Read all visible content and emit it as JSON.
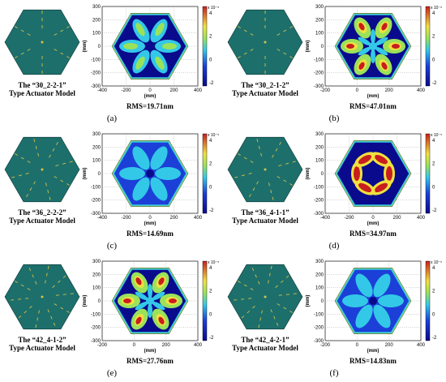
{
  "figure": {
    "panels": [
      {
        "letter": "(a)",
        "model_line1": "The “30_2-2-1”",
        "model_line2": "Type Actuator Model",
        "rms": "RMS=19.71nm",
        "pattern": "flower",
        "spokes": 6,
        "x_ticks": [
          "-400",
          "-200",
          "0",
          "200",
          "400"
        ],
        "y_ticks": [
          "300",
          "200",
          "100",
          "0",
          "-100",
          "-200",
          "-300"
        ],
        "cb_ticks": [
          "4",
          "2",
          "0",
          "-2"
        ],
        "cb_exp": "x 10⁻⁵",
        "axis_unit": "(mm)"
      },
      {
        "letter": "(b)",
        "model_line1": "The “30_2-1-2”",
        "model_line2": "Type Actuator Model",
        "rms": "RMS=47.01nm",
        "pattern": "star-hot",
        "spokes": 6,
        "x_ticks": [
          "-200",
          "0",
          "200",
          "400"
        ],
        "y_ticks": [
          "300",
          "200",
          "100",
          "0",
          "-100",
          "-200",
          "-300"
        ],
        "cb_ticks": [
          "4",
          "2",
          "0",
          "-2"
        ],
        "cb_exp": "x 10⁻⁵",
        "axis_unit": "(mm)"
      },
      {
        "letter": "(c)",
        "model_line1": "The “36_2-2-2”",
        "model_line2": "Type Actuator Model",
        "rms": "RMS=14.69nm",
        "pattern": "flower-soft",
        "spokes": 8,
        "x_ticks": [
          "-400",
          "-200",
          "0",
          "200",
          "400"
        ],
        "y_ticks": [
          "300",
          "200",
          "100",
          "0",
          "-100",
          "-200",
          "-300"
        ],
        "cb_ticks": [
          "4",
          "2",
          "0",
          "-2"
        ],
        "cb_exp": "x 10⁻⁵",
        "axis_unit": "(mm)"
      },
      {
        "letter": "(d)",
        "model_line1": "The “36_4-1-1”",
        "model_line2": "Type Actuator Model",
        "rms": "RMS=34.97nm",
        "pattern": "ring-hot",
        "spokes": 8,
        "x_ticks": [
          "-400",
          "-200",
          "0",
          "200",
          "400"
        ],
        "y_ticks": [
          "300",
          "200",
          "100",
          "0",
          "-100",
          "-200",
          "-300"
        ],
        "cb_ticks": [
          "4",
          "2",
          "0",
          "-2"
        ],
        "cb_exp": "x 10⁻⁵",
        "axis_unit": "(mm)"
      },
      {
        "letter": "(e)",
        "model_line1": "The “42_4-1-2”",
        "model_line2": "Type Actuator Model",
        "rms": "RMS=27.76nm",
        "pattern": "star-hot2",
        "spokes": 10,
        "x_ticks": [
          "-200",
          "0",
          "200",
          "400"
        ],
        "y_ticks": [
          "300",
          "200",
          "100",
          "0",
          "-100",
          "-200",
          "-300"
        ],
        "cb_ticks": [
          "4",
          "2",
          "0",
          "-2"
        ],
        "cb_exp": "x 10⁻⁵",
        "axis_unit": "(mm)"
      },
      {
        "letter": "(f)",
        "model_line1": "The “42_4-2-1”",
        "model_line2": "Type Actuator Model",
        "rms": "RMS=14.83nm",
        "pattern": "flower-soft2",
        "spokes": 10,
        "x_ticks": [
          "-200",
          "0",
          "200",
          "400"
        ],
        "y_ticks": [
          "300",
          "200",
          "100",
          "0",
          "-100",
          "-200",
          "-300"
        ],
        "cb_ticks": [
          "4",
          "2",
          "0",
          "-2"
        ],
        "cb_exp": "x 10⁻⁵",
        "axis_unit": "(mm)"
      }
    ],
    "colors": {
      "model_bg": "#1d6f6b",
      "spoke": "#d8c24a",
      "deep_blue": "#0a0a8c",
      "blue": "#1c3fd8",
      "cyan": "#33c8e8",
      "green": "#9ae25a",
      "yellow": "#f0e040",
      "red": "#c81e1e"
    }
  }
}
